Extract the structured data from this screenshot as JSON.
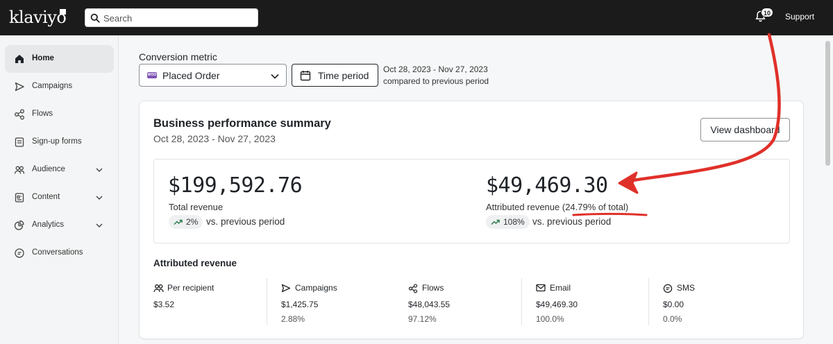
{
  "topbar": {
    "logo": "klaviyo",
    "search_placeholder": "Search",
    "notification_count": "10",
    "support": "Support"
  },
  "sidebar": {
    "items": [
      {
        "label": "Home",
        "icon": "home-icon",
        "active": true
      },
      {
        "label": "Campaigns",
        "icon": "send-icon"
      },
      {
        "label": "Flows",
        "icon": "flows-icon"
      },
      {
        "label": "Sign-up forms",
        "icon": "form-icon"
      },
      {
        "label": "Audience",
        "icon": "audience-icon",
        "expandable": true
      },
      {
        "label": "Content",
        "icon": "content-icon",
        "expandable": true
      },
      {
        "label": "Analytics",
        "icon": "analytics-icon",
        "expandable": true
      },
      {
        "label": "Conversations",
        "icon": "chat-icon"
      }
    ]
  },
  "filters": {
    "conversion_label": "Conversion metric",
    "metric_value": "Placed Order",
    "metric_badge": "WOO",
    "time_period_label": "Time period",
    "date_range": "Oct 28, 2023 - Nov 27, 2023",
    "compare_text": "compared to previous period"
  },
  "summary": {
    "title": "Business performance summary",
    "date_range": "Oct 28, 2023 - Nov 27, 2023",
    "view_dashboard": "View dashboard",
    "total_revenue": "$199,592.76",
    "total_revenue_label": "Total revenue",
    "total_change": "2%",
    "vs_text": "vs. previous period",
    "attributed_revenue": "$49,469.30",
    "attributed_revenue_label": "Attributed revenue",
    "attributed_share": "(24.79% of total)",
    "attributed_change": "108%",
    "vs_text_2": "vs. previous period"
  },
  "attributed": {
    "title": "Attributed revenue",
    "columns": [
      {
        "label": "Per recipient",
        "icon": "people-icon",
        "value": "$3.52",
        "pct": ""
      },
      {
        "label": "Campaigns",
        "icon": "send-icon",
        "value": "$1,425.75",
        "pct": "2.88%"
      },
      {
        "label": "Flows",
        "icon": "flows-icon",
        "value": "$48,043.55",
        "pct": "97.12%"
      },
      {
        "label": "Email",
        "icon": "mail-icon",
        "value": "$49,469.30",
        "pct": "100.0%"
      },
      {
        "label": "SMS",
        "icon": "sms-icon",
        "value": "$0.00",
        "pct": "0.0%"
      }
    ]
  },
  "colors": {
    "topbar": "#1b1b1b",
    "annotation": "#e0302a",
    "positive": "#2e7d4f"
  }
}
